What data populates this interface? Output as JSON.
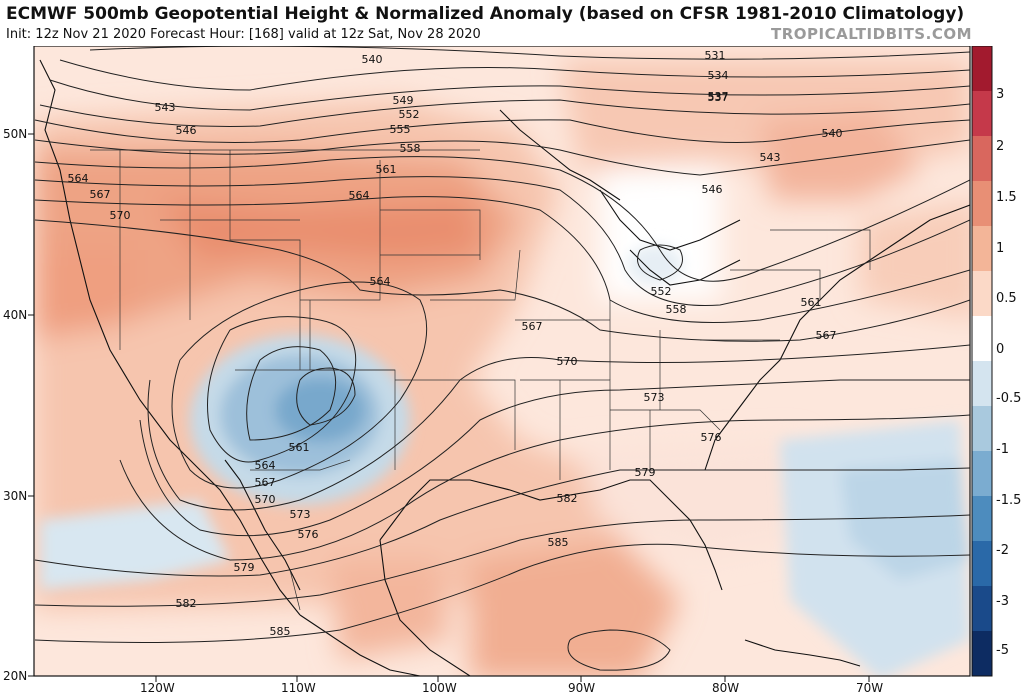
{
  "header": {
    "title": "ECMWF 500mb Geopotential Height & Normalized Anomaly (based on CFSR 1981-2010 Climatology)",
    "subtitle": "Init: 12z Nov 21 2020   Forecast Hour: [168]   valid at 12z Sat, Nov 28 2020",
    "brand": "TROPICALTIDBITS.COM"
  },
  "axes": {
    "lat_labels": [
      "50N",
      "40N",
      "30N",
      "20N"
    ],
    "lon_labels": [
      "120W",
      "110W",
      "100W",
      "90W",
      "80W",
      "70W"
    ]
  },
  "colorbar": {
    "labels": [
      "3",
      "2",
      "1.5",
      "1",
      "0.5",
      "0",
      "-0.5",
      "-1",
      "-1.5",
      "-2",
      "-3",
      "-5"
    ],
    "colors": [
      "#a21a2e",
      "#c5394a",
      "#d9675e",
      "#e88f75",
      "#f3b598",
      "#fbd9c7",
      "#ffffff",
      "#d4e4ef",
      "#a9c9de",
      "#7bacd0",
      "#4d8cbe",
      "#2a69a8",
      "#1a4a8a",
      "#0d2c62"
    ]
  },
  "contours": {
    "height_labels": [
      "531",
      "534",
      "537",
      "537",
      "540",
      "540",
      "543",
      "543",
      "546",
      "546",
      "549",
      "552",
      "552",
      "555",
      "558",
      "558",
      "561",
      "561",
      "561",
      "564",
      "564",
      "564",
      "564",
      "567",
      "567",
      "567",
      "567",
      "570",
      "570",
      "570",
      "573",
      "573",
      "576",
      "576",
      "579",
      "579",
      "582",
      "582",
      "585",
      "585"
    ]
  }
}
